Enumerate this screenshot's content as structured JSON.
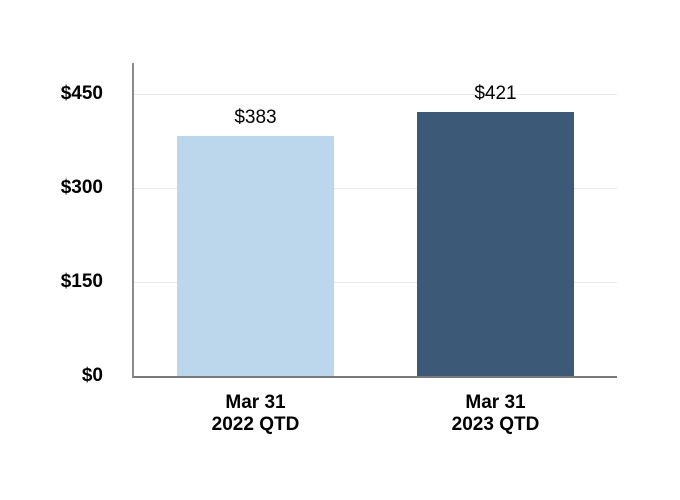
{
  "chart_data": {
    "type": "bar",
    "title": "",
    "xlabel": "",
    "ylabel": "",
    "categories": [
      {
        "id": "2022-qtd",
        "line1": "Mar 31",
        "line2": "2022 QTD"
      },
      {
        "id": "2023-qtd",
        "line1": "Mar 31",
        "line2": "2023 QTD"
      }
    ],
    "values": [
      383,
      421
    ],
    "value_labels": [
      "$383",
      "$421"
    ],
    "ylim": [
      0,
      500
    ],
    "yticks": [
      {
        "value": 0,
        "label": "$0"
      },
      {
        "value": 150,
        "label": "$150"
      },
      {
        "value": 300,
        "label": "$300"
      },
      {
        "value": 450,
        "label": "$450"
      }
    ],
    "grid": true,
    "legend_position": "none",
    "colors": {
      "bars": [
        "#BCD6EB",
        "#3C5977"
      ],
      "gridline": "#EBEBEB",
      "axis": "#7F7F7F",
      "text": "#000000",
      "background": "#FFFFFF"
    }
  }
}
